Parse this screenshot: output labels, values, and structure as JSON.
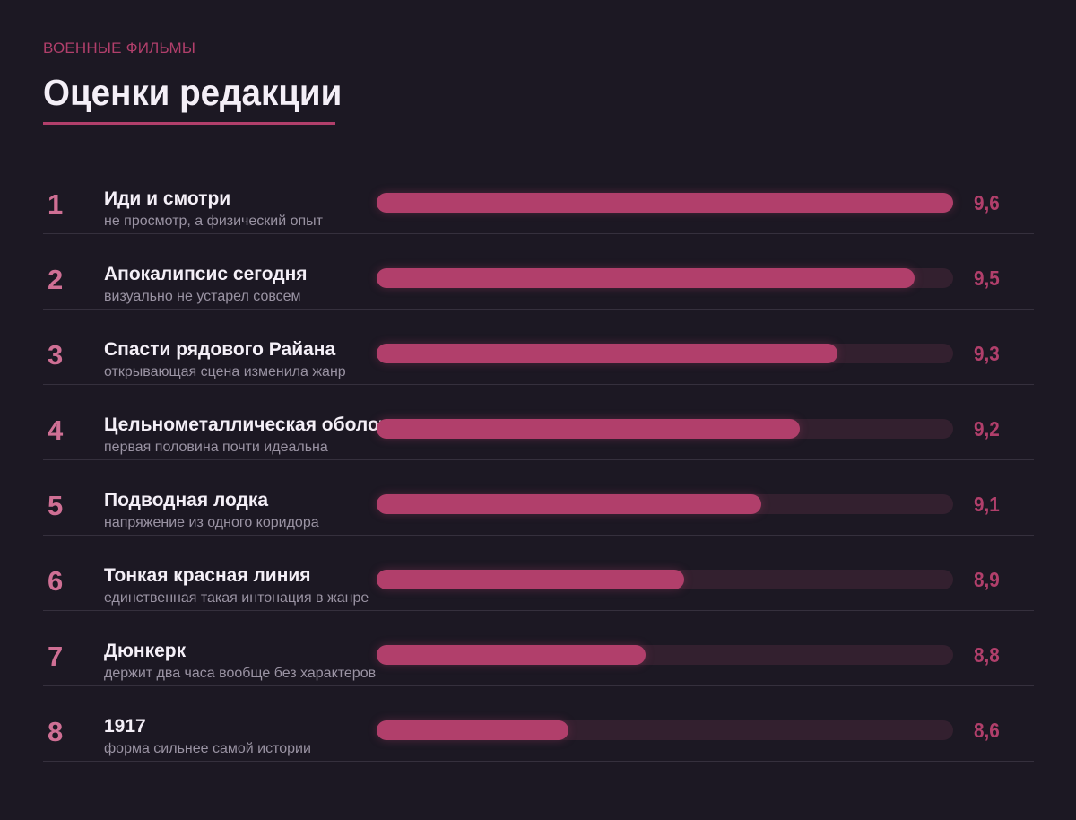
{
  "header": {
    "kicker": "ВОЕННЫЕ ФИЛЬМЫ",
    "title": "Оценки редакции"
  },
  "colors": {
    "background": "#1c1823",
    "accent": "#b13f6b",
    "track": "#33202f",
    "rank": "#cf6f94"
  },
  "chart_data": {
    "type": "bar",
    "orientation": "horizontal",
    "title": "Оценки редакции",
    "categories": [
      "Иди и смотри",
      "Апокалипсис сегодня",
      "Спасти рядового Райана",
      "Цельнометаллическая оболочка",
      "Подводная лодка",
      "Тонкая красная линия",
      "Дюнкерк",
      "1917"
    ],
    "values": [
      9.6,
      9.5,
      9.3,
      9.2,
      9.1,
      8.9,
      8.8,
      8.6
    ],
    "value_labels": [
      "9,6",
      "9,5",
      "9,3",
      "9,2",
      "9,1",
      "8,9",
      "8,8",
      "8,6"
    ],
    "xlim": [
      8.1,
      9.6
    ],
    "grid": false,
    "legend": false
  },
  "rows": [
    {
      "rank": "1",
      "name": "Иди и смотри",
      "note": "не просмотр, а физический опыт",
      "score": "9,6"
    },
    {
      "rank": "2",
      "name": "Апокалипсис сегодня",
      "note": "визуально не устарел совсем",
      "score": "9,5"
    },
    {
      "rank": "3",
      "name": "Спасти рядового Райана",
      "note": "открывающая сцена изменила жанр",
      "score": "9,3"
    },
    {
      "rank": "4",
      "name": "Цельнометаллическая оболочка",
      "note": "первая половина почти идеальна",
      "score": "9,2"
    },
    {
      "rank": "5",
      "name": "Подводная лодка",
      "note": "напряжение из одного коридора",
      "score": "9,1"
    },
    {
      "rank": "6",
      "name": "Тонкая красная линия",
      "note": "единственная такая интонация в жанре",
      "score": "8,9"
    },
    {
      "rank": "7",
      "name": "Дюнкерк",
      "note": "держит два часа вообще без характеров",
      "score": "8,8"
    },
    {
      "rank": "8",
      "name": "1917",
      "note": "форма сильнее самой истории",
      "score": "8,6"
    }
  ]
}
